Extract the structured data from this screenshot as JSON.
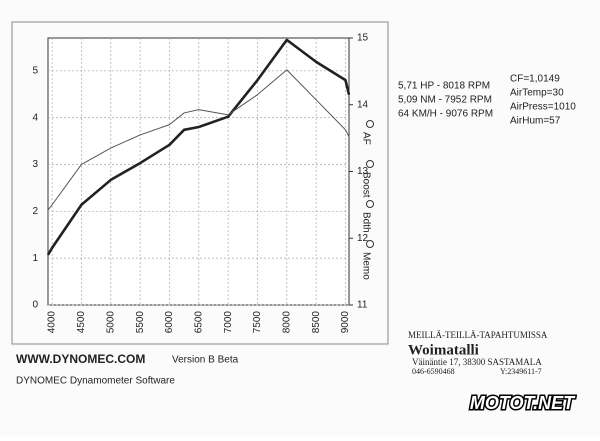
{
  "chart_data": {
    "type": "line",
    "x": [
      3930,
      4000,
      4500,
      5000,
      5500,
      6000,
      6250,
      6500,
      7000,
      7500,
      8000,
      8500,
      9000,
      9060
    ],
    "series": [
      {
        "color": "#222222",
        "width": 2.6,
        "values": [
          1.07,
          1.22,
          2.14,
          2.67,
          3.03,
          3.42,
          3.74,
          3.8,
          4.02,
          4.8,
          5.66,
          5.19,
          4.8,
          4.49
        ]
      },
      {
        "color": "#555555",
        "width": 1,
        "values": [
          2.03,
          2.14,
          3.0,
          3.35,
          3.63,
          3.85,
          4.1,
          4.17,
          4.06,
          4.49,
          5.02,
          4.38,
          3.74,
          3.59
        ]
      }
    ],
    "xlim": [
      3930,
      9060
    ],
    "xticks": [
      4000,
      4500,
      5000,
      5500,
      6000,
      6500,
      7000,
      7500,
      8000,
      8500,
      9000
    ],
    "ylim": [
      0,
      5.7
    ],
    "yticks": [
      0,
      1,
      2,
      3,
      4,
      5
    ],
    "y2lim": [
      11,
      15
    ],
    "y2ticks": [
      11,
      12,
      13,
      14,
      15
    ],
    "grid": true,
    "options": [
      "AF",
      "Boost",
      "Bdth",
      "Memo"
    ]
  },
  "results": [
    "5,71 HP - 8018 RPM",
    "5,09 NM - 7952 RPM",
    "64 KM/H - 9076 RPM"
  ],
  "conditions": [
    "CF=1,0149",
    "AirTemp=30",
    "AirPress=1010",
    "AirHum=57"
  ],
  "footer": {
    "website": "WWW.DYNOMEC.COM",
    "version": "Version  B Beta",
    "software": "DYNOMEC Dynamometer Software"
  },
  "stamp": {
    "slogan": "MEILLÄ-TEILLÄ-TAPAHTUMISSA",
    "name": "Woimatalli",
    "address": "Väinäntie 17, 38300 SASTAMALA",
    "phone": "046-6590468",
    "ytunnus": "Y:2349611-7"
  },
  "watermark": "MOTOT.NET"
}
